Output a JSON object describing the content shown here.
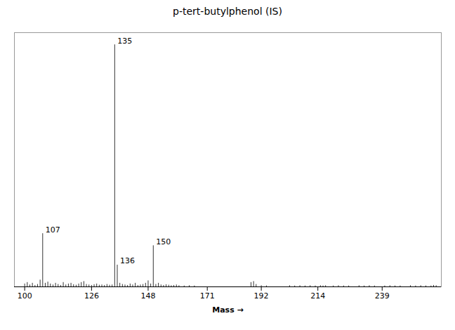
{
  "chart_data": {
    "type": "stem",
    "title": "p-tert-butylphenol (IS)",
    "xlabel": "Mass",
    "xlim": [
      96,
      262
    ],
    "ylim": [
      0,
      105
    ],
    "xticks": [
      100,
      126,
      148,
      171,
      192,
      214,
      239
    ],
    "tick_labels": "x",
    "color": "#000000",
    "x": [
      100,
      101,
      102,
      103,
      104,
      105,
      106,
      108,
      109,
      110,
      111,
      112,
      113,
      114,
      115,
      116,
      117,
      118,
      119,
      120,
      121,
      122,
      123,
      124,
      125,
      126,
      127,
      128,
      129,
      130,
      131,
      132,
      133,
      134,
      137,
      138,
      139,
      140,
      141,
      142,
      143,
      144,
      145,
      146,
      147,
      148,
      149,
      151,
      152,
      153,
      154,
      155,
      156,
      157,
      158,
      159,
      160,
      162,
      164,
      166,
      188,
      189,
      190,
      192,
      194,
      203,
      205,
      207,
      209,
      211,
      213,
      215,
      216,
      217,
      220,
      222,
      224,
      226,
      230,
      232,
      234,
      236,
      240,
      242,
      244,
      246,
      250,
      252,
      254,
      256,
      258,
      259,
      260,
      107,
      135,
      136,
      150
    ],
    "values": [
      1.2,
      1.8,
      0.8,
      1.5,
      0.6,
      1.0,
      2.8,
      1.5,
      2.0,
      1.2,
      0.8,
      1.5,
      1.0,
      0.6,
      1.8,
      0.8,
      1.2,
      1.5,
      0.9,
      0.7,
      1.2,
      1.8,
      2.2,
      1.0,
      0.8,
      0.6,
      0.9,
      1.2,
      0.7,
      0.8,
      0.6,
      1.0,
      0.7,
      0.8,
      1.5,
      1.0,
      0.8,
      0.6,
      1.2,
      0.8,
      1.5,
      0.6,
      0.8,
      1.0,
      1.5,
      2.5,
      1.2,
      1.0,
      1.5,
      0.8,
      0.6,
      0.9,
      0.7,
      0.5,
      0.6,
      0.8,
      0.5,
      0.4,
      0.5,
      0.4,
      1.8,
      2.2,
      1.0,
      0.5,
      0.4,
      0.5,
      0.4,
      0.5,
      0.4,
      0.5,
      0.4,
      0.5,
      0.4,
      0.5,
      0.4,
      0.5,
      0.4,
      0.4,
      0.5,
      0.4,
      0.5,
      0.4,
      0.4,
      0.5,
      0.4,
      0.4,
      0.5,
      0.4,
      0.5,
      0.4,
      0.4,
      0.6,
      0.5,
      22,
      100,
      9,
      17
    ],
    "annotations": [
      {
        "text": "107",
        "x": 107,
        "y": 22
      },
      {
        "text": "135",
        "x": 135,
        "y": 100
      },
      {
        "text": "136",
        "x": 136,
        "y": 9
      },
      {
        "text": "150",
        "x": 150,
        "y": 17
      }
    ]
  }
}
